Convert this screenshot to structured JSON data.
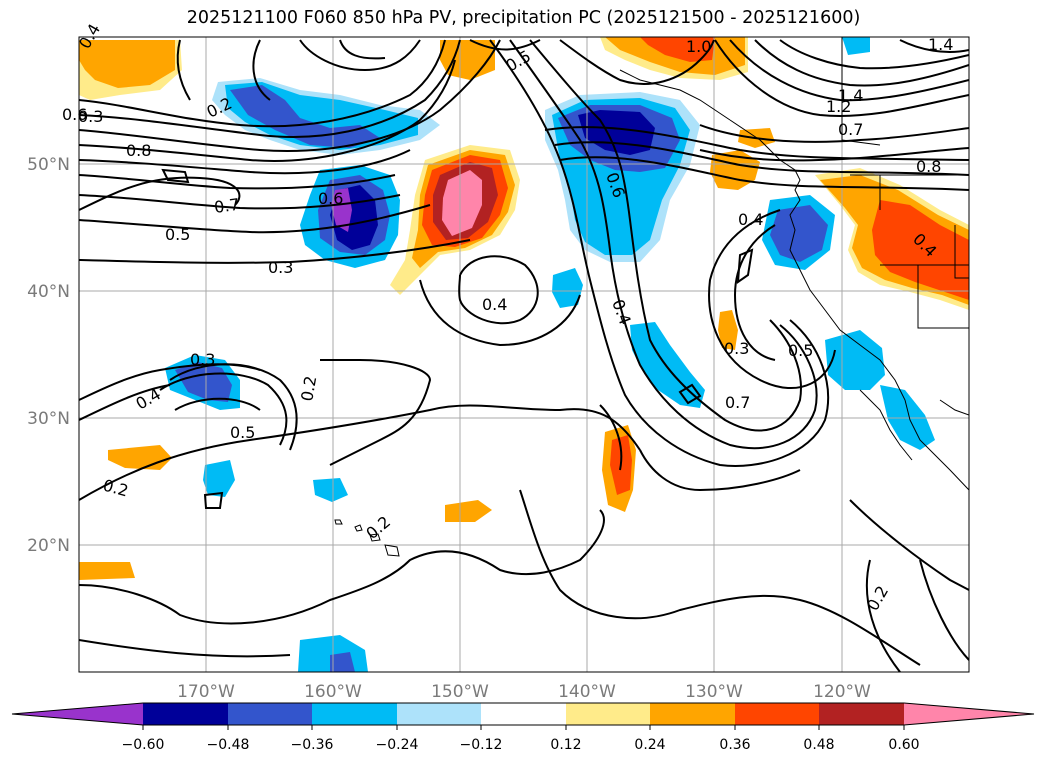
{
  "title": "2025121100 F060 850 hPa PV, precipitation PC (2025121500 - 2025121600)",
  "map": {
    "lat_labels": [
      "50°N",
      "40°N",
      "30°N",
      "20°N"
    ],
    "lon_labels": [
      "170°W",
      "160°W",
      "150°W",
      "140°W",
      "130°W",
      "120°W"
    ],
    "contour_labels": [
      "0.4",
      "0.3",
      "0.2",
      "0.6",
      "0.8",
      "0.7",
      "0.5",
      "0.3",
      "0.6",
      "0.5",
      "1.0",
      "1.4",
      "1.2",
      "1.4",
      "0.7",
      "0.8",
      "0.6",
      "0.4",
      "0.4",
      "0.4",
      "0.3",
      "0.5",
      "0.3",
      "0.4",
      "0.5",
      "0.2",
      "0.7",
      "0.2",
      "0.2",
      "0.2",
      "0.4"
    ]
  },
  "colorbar": {
    "ticks": [
      "−0.60",
      "−0.48",
      "−0.36",
      "−0.24",
      "−0.12",
      "0.12",
      "0.24",
      "0.36",
      "0.48",
      "0.60"
    ],
    "colors": [
      "#9933cc",
      "#000099",
      "#3355cc",
      "#00bbf5",
      "#ade2fa",
      "#ffffff",
      "#ffeb8a",
      "#ffa500",
      "#ff4500",
      "#b22222",
      "#ff85aa"
    ]
  }
}
